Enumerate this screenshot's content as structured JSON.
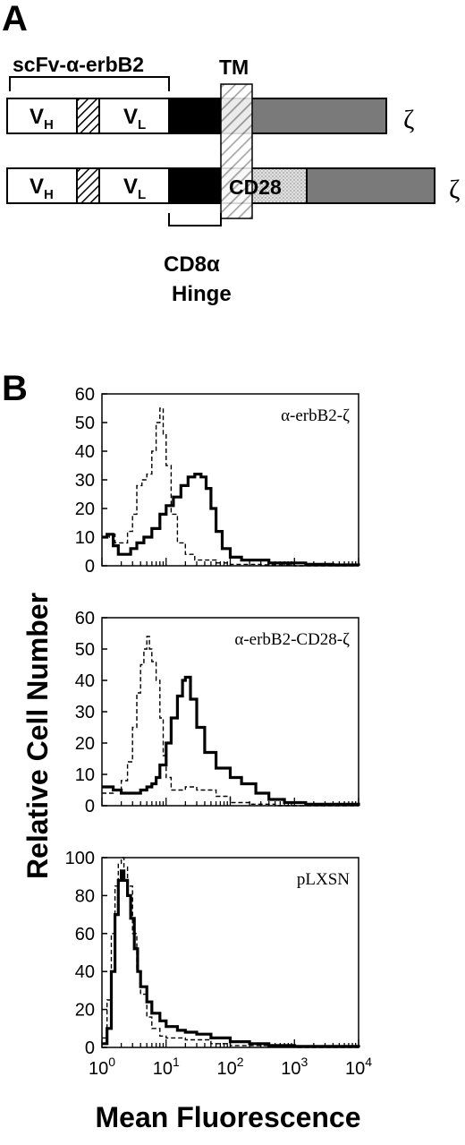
{
  "panel_a": {
    "panel_label": "A",
    "scfv_label": "scFv-α-erbB2",
    "tm_label": "TM",
    "vh_main": "V",
    "vh_sub": "H",
    "vl_main": "V",
    "vl_sub": "L",
    "cd28_label": "CD28",
    "zeta_label": "ζ",
    "hinge_line1": "CD8α",
    "hinge_line2": "Hinge",
    "colors": {
      "hinge_black": "#000000",
      "zeta_gray": "#7a7a7a",
      "cd28_stipple": "#d9d9d9"
    }
  },
  "panel_b": {
    "panel_label": "B",
    "ylabel": "Relative Cell Number",
    "xlabel": "Mean Fluorescence",
    "x_tick_base": "10",
    "x_tick_exps": [
      "0",
      "1",
      "2",
      "3",
      "4"
    ]
  },
  "chart_data": [
    {
      "type": "line",
      "title": "α-erbB2-ζ",
      "xscale": "log",
      "xlim": [
        1,
        10000
      ],
      "ylim": [
        0,
        60
      ],
      "yticks": [
        "0",
        "10",
        "20",
        "30",
        "40",
        "50",
        "60"
      ],
      "series": [
        {
          "style": "solid-thick",
          "x": [
            1,
            1.2,
            1.5,
            1.8,
            2.2,
            2.8,
            3.5,
            4.5,
            6,
            8,
            10,
            13,
            17,
            22,
            28,
            35,
            42,
            50,
            60,
            75,
            100,
            150,
            250,
            400,
            700,
            1500,
            4000,
            10000
          ],
          "y": [
            10,
            11,
            7,
            4,
            4,
            6,
            8,
            10,
            13,
            18,
            21,
            24,
            28,
            31,
            32,
            31,
            27,
            20,
            12,
            6,
            3,
            2,
            2,
            1,
            1,
            0.5,
            0.3,
            0
          ]
        },
        {
          "style": "dashed",
          "x": [
            1,
            1.3,
            1.6,
            2,
            2.5,
            3,
            3.5,
            4.2,
            5,
            6,
            7,
            8,
            9,
            10,
            12,
            15,
            20,
            28,
            40,
            60,
            100,
            300,
            1000,
            10000
          ],
          "y": [
            10,
            11,
            8,
            8,
            12,
            18,
            28,
            30,
            32,
            40,
            50,
            55,
            46,
            35,
            18,
            8,
            4,
            2,
            2,
            1,
            0.5,
            0.3,
            0,
            0
          ]
        }
      ]
    },
    {
      "type": "line",
      "title": "α-erbB2-CD28-ζ",
      "xscale": "log",
      "xlim": [
        1,
        10000
      ],
      "ylim": [
        0,
        60
      ],
      "yticks": [
        "0",
        "10",
        "20",
        "30",
        "40",
        "50",
        "60"
      ],
      "series": [
        {
          "style": "solid-thick",
          "x": [
            1,
            1.5,
            2,
            3,
            4,
            5,
            6,
            7,
            8,
            10,
            12,
            15,
            18,
            20,
            24,
            30,
            40,
            60,
            100,
            150,
            250,
            400,
            700,
            1500,
            10000
          ],
          "y": [
            6,
            5,
            4,
            4,
            5,
            6,
            7,
            9,
            13,
            20,
            28,
            35,
            40,
            41,
            34,
            25,
            17,
            12,
            9,
            7,
            4,
            2,
            1,
            0.5,
            0
          ]
        },
        {
          "style": "dashed",
          "x": [
            1,
            1.5,
            2,
            2.5,
            3,
            3.5,
            4,
            4.5,
            5,
            5.5,
            6,
            7,
            8,
            9,
            10,
            12,
            15,
            20,
            30,
            60,
            100,
            200,
            500,
            10000
          ],
          "y": [
            4,
            5,
            8,
            14,
            25,
            36,
            45,
            50,
            54,
            50,
            46,
            40,
            28,
            16,
            9,
            5,
            5,
            6,
            5,
            3,
            1,
            0.5,
            0,
            0
          ]
        }
      ]
    },
    {
      "type": "line",
      "title": "pLXSN",
      "xscale": "log",
      "xlim": [
        1,
        10000
      ],
      "ylim": [
        0,
        100
      ],
      "yticks": [
        "0",
        "20",
        "40",
        "60",
        "80",
        "100"
      ],
      "series": [
        {
          "style": "solid-thick",
          "x": [
            1,
            1.2,
            1.4,
            1.6,
            1.8,
            2,
            2.2,
            2.5,
            2.8,
            3.2,
            3.6,
            4,
            5,
            6,
            8,
            10,
            15,
            20,
            30,
            50,
            100,
            200,
            400,
            1000,
            10000
          ],
          "y": [
            2,
            10,
            40,
            70,
            88,
            93,
            88,
            80,
            68,
            52,
            40,
            32,
            24,
            18,
            14,
            11,
            9,
            8,
            7,
            5,
            3,
            2,
            1,
            0.5,
            0
          ]
        },
        {
          "style": "dashed",
          "x": [
            1,
            1.2,
            1.4,
            1.6,
            1.8,
            2,
            2.2,
            2.5,
            3,
            3.5,
            4,
            5,
            6,
            8,
            10,
            20,
            50,
            100,
            1000,
            10000
          ],
          "y": [
            5,
            25,
            60,
            85,
            97,
            100,
            95,
            85,
            60,
            40,
            28,
            16,
            10,
            6,
            5,
            4,
            2,
            1,
            0,
            0
          ]
        }
      ]
    }
  ]
}
